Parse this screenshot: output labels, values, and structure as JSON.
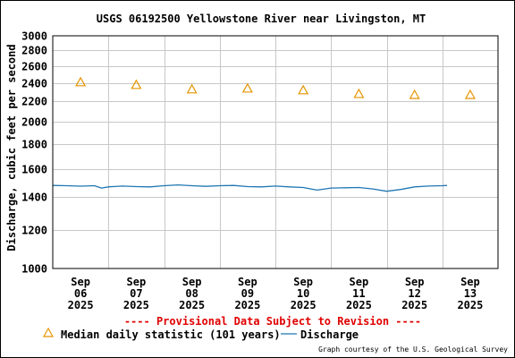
{
  "chart_data": {
    "type": "line",
    "title": "USGS 06192500 Yellowstone River near Livingston, MT",
    "ylabel": "Discharge, cubic feet per second",
    "xlabel": "",
    "y_scale": "log",
    "ylim": [
      1000,
      3000
    ],
    "y_ticks": [
      {
        "value": 1000,
        "label": "1000"
      },
      {
        "value": 1200,
        "label": "1200"
      },
      {
        "value": 1400,
        "label": "1400"
      },
      {
        "value": 1600,
        "label": "1600"
      },
      {
        "value": 1800,
        "label": "1800"
      },
      {
        "value": 2000,
        "label": "2000"
      },
      {
        "value": 2200,
        "label": "2200"
      },
      {
        "value": 2400,
        "label": "2400"
      },
      {
        "value": 2600,
        "label": "2600"
      },
      {
        "value": 2800,
        "label": "2800"
      },
      {
        "value": 3000,
        "label": "3000"
      }
    ],
    "x_domain": [
      "2025-09-06T00:00",
      "2025-09-13T23:59"
    ],
    "x_ticks": [
      {
        "date": "2025-09-06",
        "month": "Sep",
        "day": "06",
        "year": "2025"
      },
      {
        "date": "2025-09-07",
        "month": "Sep",
        "day": "07",
        "year": "2025"
      },
      {
        "date": "2025-09-08",
        "month": "Sep",
        "day": "08",
        "year": "2025"
      },
      {
        "date": "2025-09-09",
        "month": "Sep",
        "day": "09",
        "year": "2025"
      },
      {
        "date": "2025-09-10",
        "month": "Sep",
        "day": "10",
        "year": "2025"
      },
      {
        "date": "2025-09-11",
        "month": "Sep",
        "day": "11",
        "year": "2025"
      },
      {
        "date": "2025-09-12",
        "month": "Sep",
        "day": "12",
        "year": "2025"
      },
      {
        "date": "2025-09-13",
        "month": "Sep",
        "day": "13",
        "year": "2025"
      }
    ],
    "grid": true,
    "series": [
      {
        "name": "Discharge",
        "kind": "line",
        "color": "#1f77b4",
        "points": [
          {
            "x": "2025-09-06T00:00",
            "y": 1480
          },
          {
            "x": "2025-09-06T06:00",
            "y": 1478
          },
          {
            "x": "2025-09-06T12:00",
            "y": 1475
          },
          {
            "x": "2025-09-06T18:00",
            "y": 1478
          },
          {
            "x": "2025-09-06T21:00",
            "y": 1462
          },
          {
            "x": "2025-09-07T00:00",
            "y": 1470
          },
          {
            "x": "2025-09-07T06:00",
            "y": 1476
          },
          {
            "x": "2025-09-07T12:00",
            "y": 1472
          },
          {
            "x": "2025-09-07T18:00",
            "y": 1470
          },
          {
            "x": "2025-09-08T00:00",
            "y": 1478
          },
          {
            "x": "2025-09-08T06:00",
            "y": 1484
          },
          {
            "x": "2025-09-08T12:00",
            "y": 1478
          },
          {
            "x": "2025-09-08T18:00",
            "y": 1474
          },
          {
            "x": "2025-09-09T00:00",
            "y": 1478
          },
          {
            "x": "2025-09-09T06:00",
            "y": 1480
          },
          {
            "x": "2025-09-09T12:00",
            "y": 1472
          },
          {
            "x": "2025-09-09T18:00",
            "y": 1470
          },
          {
            "x": "2025-09-10T00:00",
            "y": 1476
          },
          {
            "x": "2025-09-10T06:00",
            "y": 1470
          },
          {
            "x": "2025-09-10T12:00",
            "y": 1466
          },
          {
            "x": "2025-09-10T18:00",
            "y": 1448
          },
          {
            "x": "2025-09-11T00:00",
            "y": 1462
          },
          {
            "x": "2025-09-11T06:00",
            "y": 1464
          },
          {
            "x": "2025-09-11T12:00",
            "y": 1466
          },
          {
            "x": "2025-09-11T18:00",
            "y": 1456
          },
          {
            "x": "2025-09-12T00:00",
            "y": 1440
          },
          {
            "x": "2025-09-12T06:00",
            "y": 1452
          },
          {
            "x": "2025-09-12T12:00",
            "y": 1470
          },
          {
            "x": "2025-09-12T18:00",
            "y": 1476
          },
          {
            "x": "2025-09-13T00:00",
            "y": 1478
          },
          {
            "x": "2025-09-13T02:00",
            "y": 1480
          }
        ]
      },
      {
        "name": "Median daily statistic (101 years)",
        "kind": "marker",
        "marker": "triangle",
        "color": "#e69500",
        "points": [
          {
            "x": "2025-09-06T12:00",
            "y": 2410
          },
          {
            "x": "2025-09-07T12:00",
            "y": 2380
          },
          {
            "x": "2025-09-08T12:00",
            "y": 2330
          },
          {
            "x": "2025-09-09T12:00",
            "y": 2340
          },
          {
            "x": "2025-09-10T12:00",
            "y": 2320
          },
          {
            "x": "2025-09-11T12:00",
            "y": 2280
          },
          {
            "x": "2025-09-12T12:00",
            "y": 2270
          },
          {
            "x": "2025-09-13T12:00",
            "y": 2270
          }
        ]
      }
    ],
    "legend": {
      "placement": "bottom",
      "items": [
        {
          "label": "Median daily statistic (101 years)",
          "marker": "triangle",
          "color": "#e69500"
        },
        {
          "label": "Discharge",
          "marker": "line",
          "color": "#1f77b4"
        }
      ]
    },
    "annotations": {
      "provisional": "---- Provisional Data Subject to Revision ----",
      "provisional_color": "#e00000",
      "courtesy": "Graph courtesy of the U.S. Geological Survey"
    }
  }
}
